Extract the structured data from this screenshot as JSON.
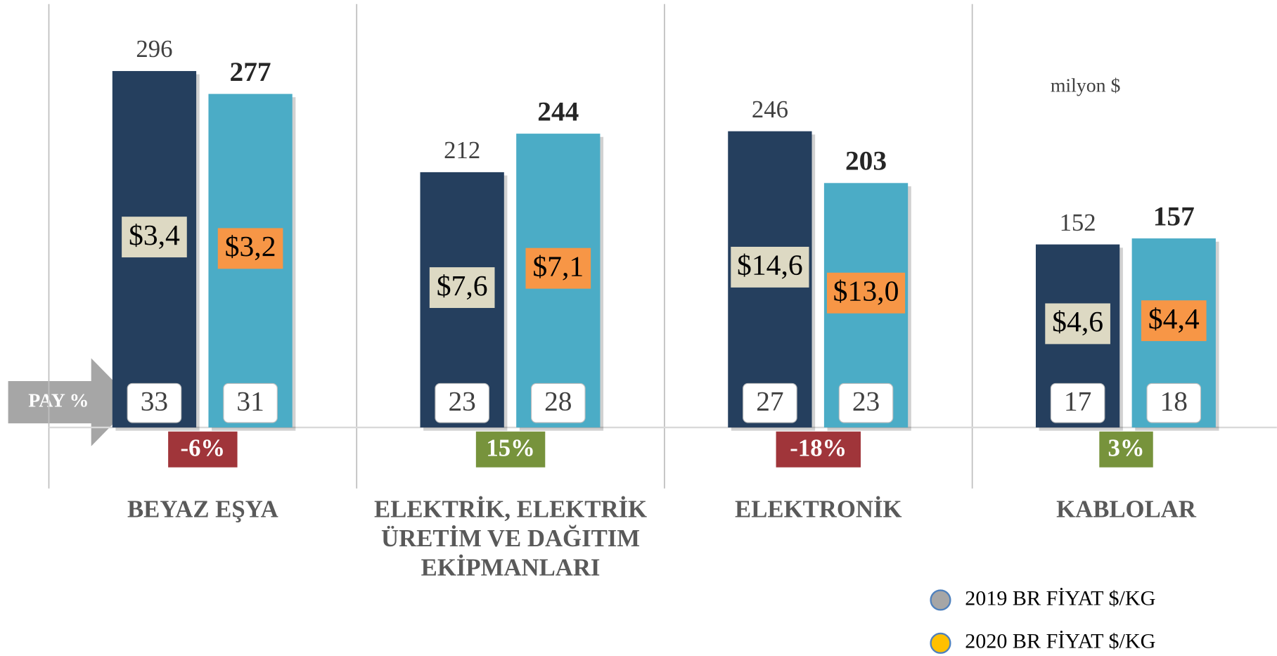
{
  "chart_data": {
    "type": "bar",
    "categories": [
      "BEYAZ EŞYA",
      "ELEKTRİK, ELEKTRİK ÜRETİM VE DAĞITIM EKİPMANLARI",
      "ELEKTRONİK",
      "KABLOLAR"
    ],
    "series": [
      {
        "color": "#253f5e",
        "values": [
          296,
          212,
          246,
          152
        ]
      },
      {
        "color": "#4bacc6",
        "values": [
          277,
          244,
          203,
          157
        ]
      }
    ],
    "ylim": [
      0,
      355
    ],
    "unit_prices": [
      {
        "name": "2019 BR FİYAT $/KG",
        "color": "#ddd9c3",
        "legend_color": "#a6a6a6",
        "values": [
          3.4,
          7.6,
          14.6,
          4.6
        ],
        "value_labels": [
          "$3,4",
          "$7,6",
          "$14,6",
          "$4,6"
        ]
      },
      {
        "name": "2020 BR FİYAT $/KG",
        "color": "#f79646",
        "legend_color": "#ffc000",
        "values": [
          3.2,
          7.1,
          13.0,
          4.4
        ],
        "value_labels": [
          "$3,2",
          "$7,1",
          "$13,0",
          "$4,4"
        ]
      }
    ],
    "shares": [
      {
        "values": [
          33,
          23,
          27,
          17
        ]
      },
      {
        "values": [
          31,
          28,
          23,
          18
        ]
      }
    ],
    "change": {
      "values": [
        -6,
        15,
        -18,
        3
      ],
      "value_labels": [
        "-6%",
        "15%",
        "-18%",
        "3%"
      ],
      "positive_color": "#77933c",
      "negative_color": "#a0353a"
    },
    "unit_note": "milyon $",
    "share_label": "PAY %"
  }
}
